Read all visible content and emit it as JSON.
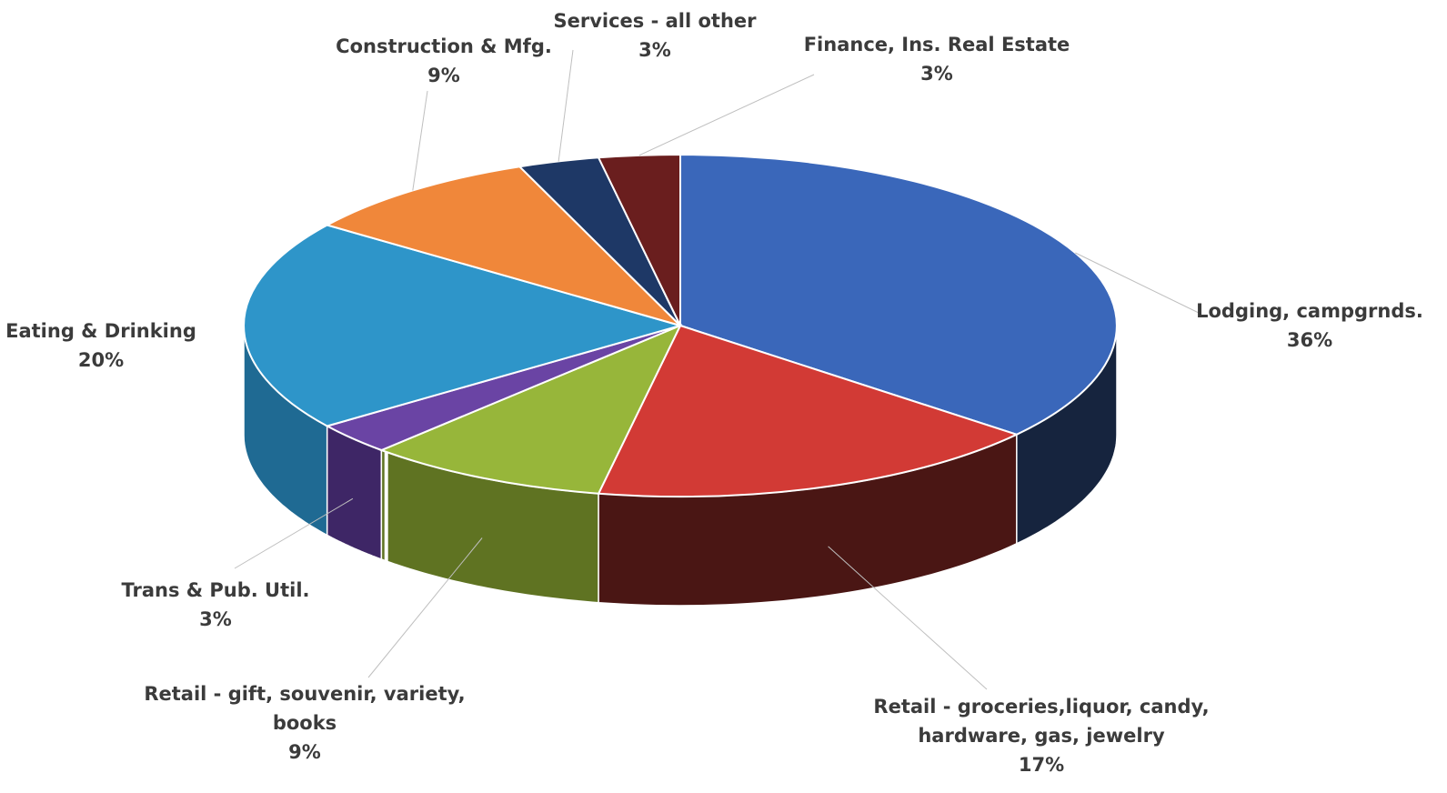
{
  "chart_data": {
    "type": "pie",
    "title": "",
    "categories": [
      "Lodging, campgrnds.",
      "Retail  - groceries,liquor, candy, hardware, gas, jewelry",
      "Retail  - gift, souvenir, variety, books",
      "Trans & Pub. Util.",
      "Eating & Drinking",
      "Construction & Mfg.",
      "Services - all other",
      "Finance, Ins. Real Estate"
    ],
    "values": [
      36,
      17,
      9,
      3,
      20,
      9,
      3,
      3
    ],
    "labels": [
      {
        "lines": [
          "Lodging, campgrnds."
        ],
        "pct": "36%"
      },
      {
        "lines": [
          "Retail  - groceries,liquor, candy,",
          "hardware, gas, jewelry"
        ],
        "pct": "17%"
      },
      {
        "lines": [
          "Retail  - gift, souvenir, variety,",
          "books"
        ],
        "pct": "9%"
      },
      {
        "lines": [
          "Trans & Pub. Util."
        ],
        "pct": "3%"
      },
      {
        "lines": [
          "Eating & Drinking"
        ],
        "pct": "20%"
      },
      {
        "lines": [
          "Construction & Mfg."
        ],
        "pct": "9%"
      },
      {
        "lines": [
          "Services - all other"
        ],
        "pct": "3%"
      },
      {
        "lines": [
          "Finance, Ins. Real Estate"
        ],
        "pct": "3%"
      }
    ],
    "colors": [
      "#3A67BA",
      "#D23A35",
      "#97B63A",
      "#6A44A4",
      "#2E95C9",
      "#F0873A",
      "#1E3866",
      "#6A1E1E"
    ],
    "side_colors": [
      "#16243E",
      "#4A1614",
      "#5F7322",
      "#3E2666",
      "#1F6A93",
      "#A65A22",
      "#10203C",
      "#3E1010"
    ],
    "style": "3d-exploded-ring",
    "legend": "none",
    "data_labels": "callouts"
  }
}
